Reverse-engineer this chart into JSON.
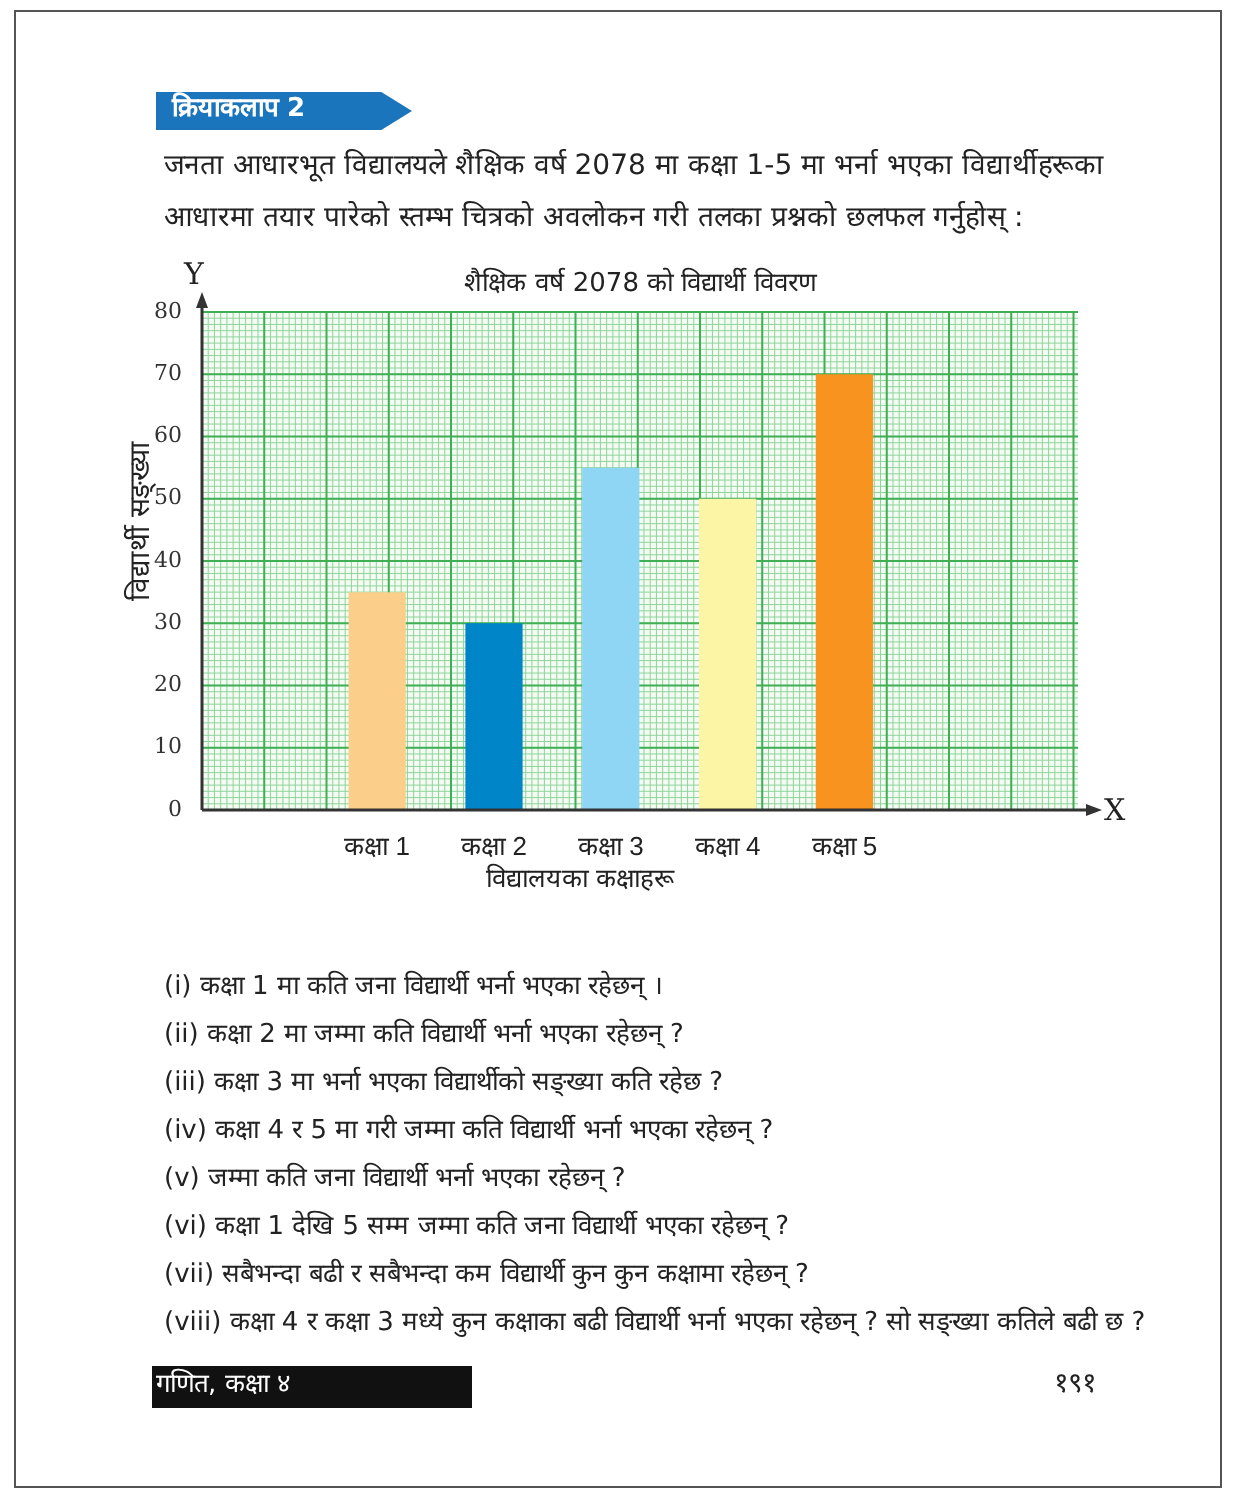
{
  "chart_data": {
    "type": "bar",
    "title": "शैक्षिक वर्ष 2078 को विद्यार्थी विवरण",
    "xlabel": "विद्यालयका कक्षाहरू",
    "ylabel": "विद्यार्थी सङ्ख्या",
    "categories": [
      "कक्षा 1",
      "कक्षा 2",
      "कक्षा 3",
      "कक्षा 4",
      "कक्षा 5"
    ],
    "values": [
      35,
      30,
      55,
      50,
      70
    ],
    "colors": [
      "#fbcf8a",
      "#0085c8",
      "#8fd6f4",
      "#fdf5a6",
      "#f7931e"
    ],
    "ylim": [
      0,
      80
    ],
    "yticks": [
      0,
      10,
      20,
      30,
      40,
      50,
      60,
      70,
      80
    ],
    "grid": true,
    "legend": false,
    "annotations": [
      "क्रियाकलाप 2",
      "जनता आधारभूत विद्यालयले शैक्षिक वर्ष 2078 मा कक्षा 1-5 मा भर्ना भएका विद्यार्थीहरूका आधारमा तयार पारेको स्तम्भ चित्रको अवलोकन गरी तलका प्रश्नको छलफल गर्नुहोस् :",
      "(i) कक्षा 1 मा कति जना विद्यार्थी भर्ना भएका रहेछन् ।",
      "(ii) कक्षा 2 मा जम्मा कति विद्यार्थी भर्ना भएका रहेछन् ?",
      "(iii) कक्षा 3 मा भर्ना भएका विद्यार्थीको सङ्ख्या कति रहेछ ?",
      "(iv) कक्षा 4 र 5 मा गरी जम्मा कति विद्यार्थी भर्ना भएका रहेछन् ?",
      "(v) जम्मा कति जना विद्यार्थी भर्ना भएका रहेछन् ?",
      "(vi) कक्षा 1 देखि 5 सम्म जम्मा कति जना विद्यार्थी भएका रहेछन् ?",
      "(vii) सबैभन्दा बढी र सबैभन्दा कम विद्यार्थी कुन कुन कक्षामा रहेछन् ?",
      "(viii) कक्षा 4 र कक्षा 3 मध्ये कुन कक्षाका बढी विद्यार्थी भर्ना भएका रहेछन् ? सो सङ्ख्या कतिले बढी छ ?",
      "गणित, कक्षा ४",
      "१९१",
      "Y",
      "X"
    ]
  }
}
